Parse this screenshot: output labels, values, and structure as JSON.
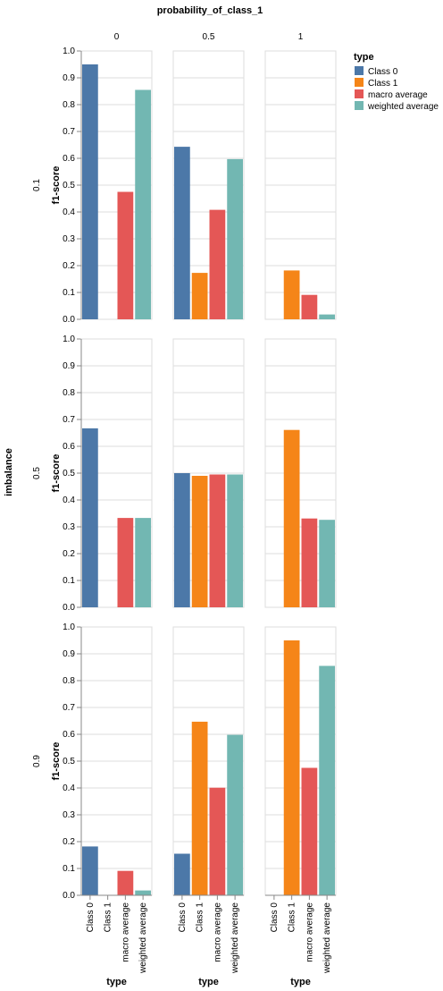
{
  "chart_data": {
    "type": "bar",
    "title": "probability_of_class_1",
    "column_facet": {
      "field": "probability_of_class_1",
      "values": [
        "0",
        "0.5",
        "1"
      ]
    },
    "row_facet": {
      "field": "imbalance",
      "values": [
        "0.1",
        "0.5",
        "0.9"
      ]
    },
    "ylabel": "f1-score",
    "xlabel": "type",
    "ylim": [
      0,
      1.0
    ],
    "yticks": [
      "0.0",
      "0.1",
      "0.2",
      "0.3",
      "0.4",
      "0.5",
      "0.6",
      "0.7",
      "0.8",
      "0.9",
      "1.0"
    ],
    "grid": true,
    "categories": [
      "Class 0",
      "Class 1",
      "macro average",
      "weighted average"
    ],
    "legend": {
      "title": "type",
      "placement": "top-right",
      "items": [
        {
          "label": "Class 0",
          "color": "#4c78a8"
        },
        {
          "label": "Class 1",
          "color": "#f58518"
        },
        {
          "label": "macro average",
          "color": "#e45756"
        },
        {
          "label": "weighted average",
          "color": "#72b7b2"
        }
      ]
    },
    "panels": [
      {
        "imbalance": "0.1",
        "probability_of_class_1": "0",
        "values": [
          0.95,
          0.0,
          0.475,
          0.855
        ]
      },
      {
        "imbalance": "0.1",
        "probability_of_class_1": "0.5",
        "values": [
          0.643,
          0.173,
          0.408,
          0.597
        ]
      },
      {
        "imbalance": "0.1",
        "probability_of_class_1": "1",
        "values": [
          0.0,
          0.182,
          0.091,
          0.018
        ]
      },
      {
        "imbalance": "0.5",
        "probability_of_class_1": "0",
        "values": [
          0.667,
          0.0,
          0.333,
          0.333
        ]
      },
      {
        "imbalance": "0.5",
        "probability_of_class_1": "0.5",
        "values": [
          0.5,
          0.49,
          0.495,
          0.495
        ]
      },
      {
        "imbalance": "0.5",
        "probability_of_class_1": "1",
        "values": [
          0.0,
          0.661,
          0.331,
          0.326
        ]
      },
      {
        "imbalance": "0.9",
        "probability_of_class_1": "0",
        "values": [
          0.182,
          0.0,
          0.091,
          0.018
        ]
      },
      {
        "imbalance": "0.9",
        "probability_of_class_1": "0.5",
        "values": [
          0.155,
          0.647,
          0.401,
          0.598
        ]
      },
      {
        "imbalance": "0.9",
        "probability_of_class_1": "1",
        "values": [
          0.0,
          0.95,
          0.475,
          0.855
        ]
      }
    ]
  }
}
